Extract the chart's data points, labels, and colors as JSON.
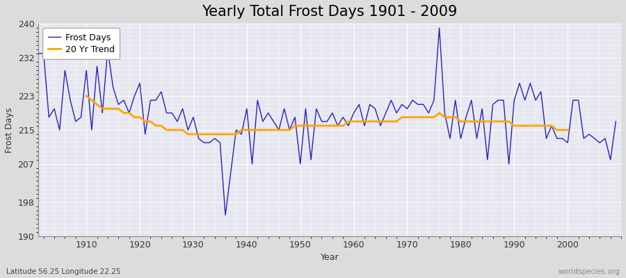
{
  "title": "Yearly Total Frost Days 1901 - 2009",
  "xlabel": "Year",
  "ylabel": "Frost Days",
  "subtitle": "Latitude 56.25 Longitude 22.25",
  "watermark": "worldspecies.org",
  "years": [
    1901,
    1902,
    1903,
    1904,
    1905,
    1906,
    1907,
    1908,
    1909,
    1910,
    1911,
    1912,
    1913,
    1914,
    1915,
    1916,
    1917,
    1918,
    1919,
    1920,
    1921,
    1922,
    1923,
    1924,
    1925,
    1926,
    1927,
    1928,
    1929,
    1930,
    1931,
    1932,
    1933,
    1934,
    1935,
    1936,
    1937,
    1938,
    1939,
    1940,
    1941,
    1942,
    1943,
    1944,
    1945,
    1946,
    1947,
    1948,
    1949,
    1950,
    1951,
    1952,
    1953,
    1954,
    1955,
    1956,
    1957,
    1958,
    1959,
    1960,
    1961,
    1962,
    1963,
    1964,
    1965,
    1966,
    1967,
    1968,
    1969,
    1970,
    1971,
    1972,
    1973,
    1974,
    1975,
    1976,
    1977,
    1978,
    1979,
    1980,
    1981,
    1982,
    1983,
    1984,
    1985,
    1986,
    1987,
    1988,
    1989,
    1990,
    1991,
    1992,
    1993,
    1994,
    1995,
    1996,
    1997,
    1998,
    1999,
    2000,
    2001,
    2002,
    2003,
    2004,
    2005,
    2006,
    2007,
    2008,
    2009
  ],
  "frost_days": [
    233,
    233,
    218,
    220,
    215,
    229,
    222,
    217,
    218,
    229,
    215,
    230,
    219,
    234,
    225,
    221,
    222,
    219,
    223,
    226,
    214,
    222,
    222,
    224,
    219,
    219,
    217,
    220,
    215,
    218,
    213,
    212,
    212,
    213,
    212,
    195,
    205,
    215,
    214,
    220,
    207,
    222,
    217,
    219,
    217,
    215,
    220,
    215,
    218,
    207,
    220,
    208,
    220,
    217,
    217,
    219,
    216,
    218,
    216,
    219,
    221,
    216,
    221,
    220,
    216,
    219,
    222,
    219,
    221,
    220,
    222,
    221,
    221,
    219,
    222,
    239,
    219,
    213,
    222,
    213,
    218,
    222,
    213,
    220,
    208,
    221,
    222,
    222,
    207,
    222,
    226,
    222,
    226,
    222,
    224,
    213,
    216,
    213,
    213,
    212,
    222,
    222,
    213,
    214,
    213,
    212,
    213,
    208,
    217
  ],
  "trend_years": [
    1910,
    1911,
    1912,
    1913,
    1914,
    1915,
    1916,
    1917,
    1918,
    1919,
    1920,
    1921,
    1922,
    1923,
    1924,
    1925,
    1926,
    1927,
    1928,
    1929,
    1930,
    1931,
    1932,
    1933,
    1934,
    1935,
    1936,
    1937,
    1938,
    1939,
    1940,
    1941,
    1942,
    1943,
    1944,
    1945,
    1946,
    1947,
    1948,
    1949,
    1950,
    1951,
    1952,
    1953,
    1954,
    1955,
    1956,
    1957,
    1958,
    1959,
    1960,
    1961,
    1962,
    1963,
    1964,
    1965,
    1966,
    1967,
    1968,
    1969,
    1970,
    1971,
    1972,
    1973,
    1974,
    1975,
    1976,
    1977,
    1978,
    1979,
    1980,
    1981,
    1982,
    1983,
    1984,
    1985,
    1986,
    1987,
    1988,
    1989,
    1990,
    1991,
    1992,
    1993,
    1994,
    1995,
    1996,
    1997,
    1998,
    1999,
    2000
  ],
  "trend_values": [
    223,
    222,
    221,
    220,
    220,
    220,
    220,
    219,
    219,
    218,
    218,
    217,
    217,
    216,
    216,
    215,
    215,
    215,
    215,
    214,
    214,
    214,
    214,
    214,
    214,
    214,
    214,
    214,
    214,
    215,
    215,
    215,
    215,
    215,
    215,
    215,
    215,
    215,
    215,
    216,
    216,
    216,
    216,
    216,
    216,
    216,
    216,
    216,
    216,
    217,
    217,
    217,
    217,
    217,
    217,
    217,
    217,
    217,
    217,
    218,
    218,
    218,
    218,
    218,
    218,
    218,
    219,
    218,
    218,
    218,
    217,
    217,
    217,
    217,
    217,
    217,
    217,
    217,
    217,
    217,
    216,
    216,
    216,
    216,
    216,
    216,
    216,
    216,
    215,
    215,
    215
  ],
  "line_color": "#2222bb",
  "trend_color": "#FFA500",
  "background_color": "#dcdcdc",
  "plot_bg_color": "#e6e6f0",
  "ylim": [
    190,
    240
  ],
  "yticks": [
    190,
    198,
    207,
    215,
    223,
    232,
    240
  ],
  "xlim": [
    1901,
    2010
  ],
  "xticks": [
    1910,
    1920,
    1930,
    1940,
    1950,
    1960,
    1970,
    1980,
    1990,
    2000
  ],
  "grid_color": "#ffffff",
  "legend_labels": [
    "Frost Days",
    "20 Yr Trend"
  ],
  "title_fontsize": 15,
  "label_fontsize": 9,
  "tick_fontsize": 9
}
